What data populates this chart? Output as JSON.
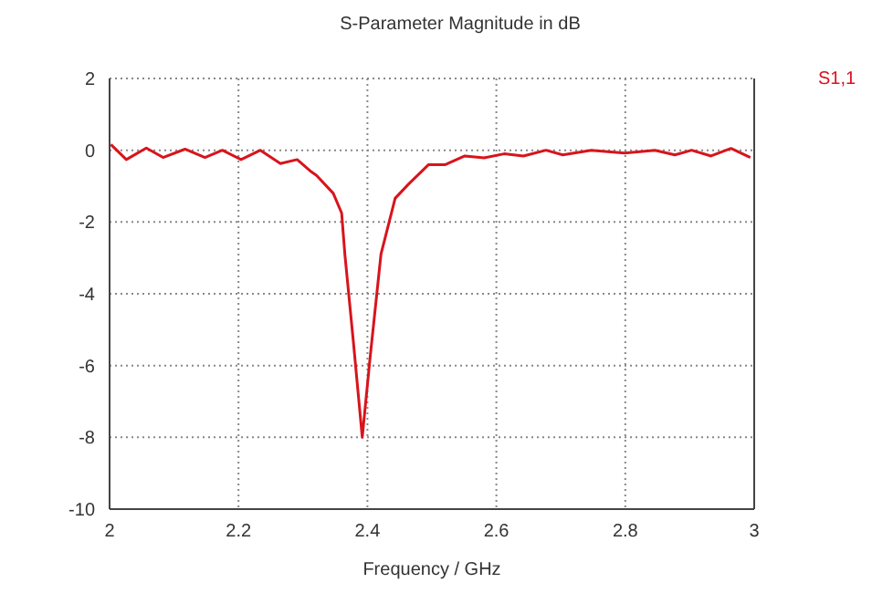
{
  "chart_data": {
    "type": "line",
    "title": "S-Parameter Magnitude in dB",
    "xlabel": "Frequency / GHz",
    "x": [
      2.002,
      2.026,
      2.057,
      2.083,
      2.117,
      2.148,
      2.175,
      2.204,
      2.234,
      2.265,
      2.291,
      2.313,
      2.321,
      2.347,
      2.36,
      2.365,
      2.378,
      2.392,
      2.404,
      2.421,
      2.443,
      2.464,
      2.495,
      2.521,
      2.551,
      2.581,
      2.612,
      2.642,
      2.677,
      2.703,
      2.747,
      2.799,
      2.846,
      2.877,
      2.903,
      2.933,
      2.964,
      2.994
    ],
    "series": [
      {
        "name": "S1,1",
        "color": "#d8141c",
        "values": [
          0.16,
          -0.26,
          0.06,
          -0.2,
          0.03,
          -0.2,
          0,
          -0.26,
          0,
          -0.37,
          -0.26,
          -0.6,
          -0.7,
          -1.2,
          -1.75,
          -2.9,
          -5.3,
          -8.0,
          -5.8,
          -2.9,
          -1.34,
          -0.94,
          -0.4,
          -0.4,
          -0.16,
          -0.21,
          -0.1,
          -0.16,
          0,
          -0.13,
          0,
          -0.08,
          0,
          -0.13,
          0,
          -0.16,
          0.05,
          -0.2
        ]
      }
    ],
    "xlim": [
      2,
      3
    ],
    "xticks": [
      2,
      2.2,
      2.4,
      2.6,
      2.8,
      3
    ],
    "ylim": [
      -10,
      2
    ],
    "yticks": [
      -10,
      -8,
      -6,
      -4,
      -2,
      0,
      2
    ],
    "grid": true,
    "legend": "top right",
    "marker": "none",
    "line_style": "solid"
  }
}
